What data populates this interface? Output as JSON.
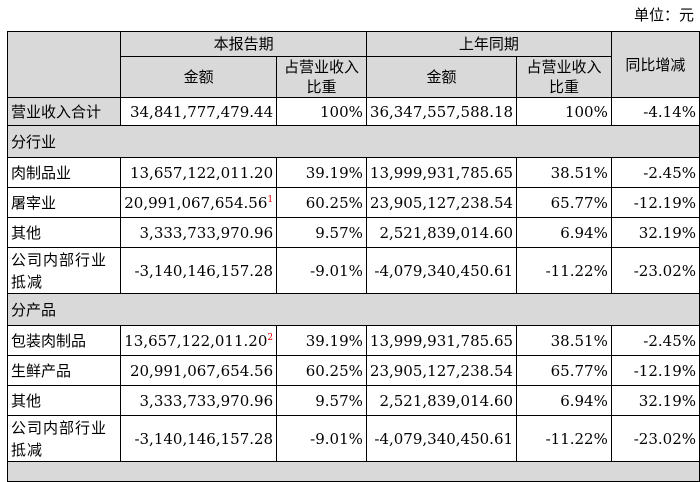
{
  "unit": "单位：元",
  "header": {
    "current": "本报告期",
    "previous": "上年同期",
    "amount": "金额",
    "share": "占营业收入比重",
    "yoy": "同比增减"
  },
  "total": {
    "label": "营业收入合计",
    "cur": "34,841,777,479.44",
    "cur_pct": "100%",
    "prev": "36,347,557,588.18",
    "prev_pct": "100%",
    "yoy": "-4.14%"
  },
  "sections": [
    {
      "title": "分行业",
      "rows": [
        {
          "label": "肉制品业",
          "cur": "13,657,122,011.20",
          "cur_pct": "39.19%",
          "prev": "13,999,931,785.65",
          "prev_pct": "38.51%",
          "yoy": "-2.45%"
        },
        {
          "label": "屠宰业",
          "cur": "20,991,067,654.56",
          "note": "1",
          "cur_pct": "60.25%",
          "prev": "23,905,127,238.54",
          "prev_pct": "65.77%",
          "yoy": "-12.19%"
        },
        {
          "label": "其他",
          "cur": "3,333,733,970.96",
          "cur_pct": "9.57%",
          "prev": "2,521,839,014.60",
          "prev_pct": "6.94%",
          "yoy": "32.19%"
        },
        {
          "label": "公司内部行业抵减",
          "cur": "-3,140,146,157.28",
          "cur_pct": "-9.01%",
          "prev": "-4,079,340,450.61",
          "prev_pct": "-11.22%",
          "yoy": "-23.02%"
        }
      ]
    },
    {
      "title": "分产品",
      "rows": [
        {
          "label": "包装肉制品",
          "cur": "13,657,122,011.20",
          "note": "2",
          "cur_pct": "39.19%",
          "prev": "13,999,931,785.65",
          "prev_pct": "38.51%",
          "yoy": "-2.45%"
        },
        {
          "label": "生鲜产品",
          "cur": "20,991,067,654.56",
          "cur_pct": "60.25%",
          "prev": "23,905,127,238.54",
          "prev_pct": "65.77%",
          "yoy": "-12.19%"
        },
        {
          "label": "其他",
          "cur": "3,333,733,970.96",
          "cur_pct": "9.57%",
          "prev": "2,521,839,014.60",
          "prev_pct": "6.94%",
          "yoy": "32.19%"
        },
        {
          "label": "公司内部行业抵减",
          "cur": "-3,140,146,157.28",
          "cur_pct": "-9.01%",
          "prev": "-4,079,340,450.61",
          "prev_pct": "-11.22%",
          "yoy": "-23.02%"
        }
      ]
    }
  ]
}
